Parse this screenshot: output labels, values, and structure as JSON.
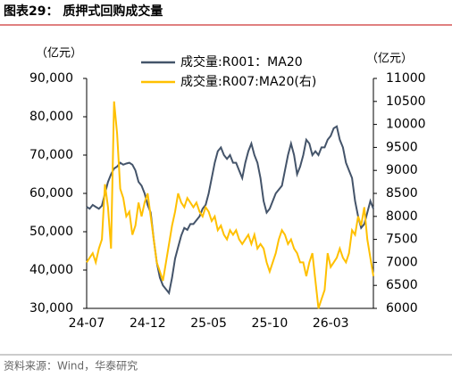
{
  "header": {
    "title": "图表29：  质押式回购成交量"
  },
  "chart_data": {
    "type": "line",
    "y_unit": "（亿元）",
    "y2_unit": "（亿元）",
    "categories": [
      "24-07",
      null,
      null,
      null,
      null,
      null,
      null,
      null,
      null,
      null,
      null,
      null,
      null,
      null,
      null,
      null,
      null,
      null,
      null,
      null,
      "24-12",
      null,
      null,
      null,
      null,
      null,
      null,
      null,
      null,
      null,
      null,
      null,
      null,
      null,
      null,
      null,
      null,
      null,
      null,
      null,
      "25-05",
      null,
      null,
      null,
      null,
      null,
      null,
      null,
      null,
      null,
      null,
      null,
      null,
      null,
      null,
      null,
      null,
      null,
      null,
      null,
      "25-10",
      null,
      null,
      null,
      null,
      null,
      null,
      null,
      null,
      null,
      null,
      null,
      null,
      null,
      null,
      null,
      null,
      null,
      null,
      null,
      "26-03",
      null,
      null,
      null,
      null,
      null,
      null,
      null,
      null,
      null,
      null,
      null,
      null,
      null,
      null
    ],
    "series": [
      {
        "name": "成交量:R001：MA20",
        "color": "#44546a",
        "values": [
          56500,
          56000,
          57000,
          56500,
          56000,
          56800,
          60000,
          63000,
          65000,
          66500,
          67000,
          68000,
          67500,
          67800,
          68000,
          67500,
          66000,
          63000,
          62000,
          60000,
          57000,
          55000,
          48000,
          42000,
          38000,
          36000,
          35000,
          34000,
          38000,
          43000,
          46000,
          49000,
          51000,
          50500,
          52000,
          52000,
          53000,
          54000,
          56000,
          57000,
          60000,
          64000,
          68000,
          71000,
          72000,
          70000,
          69000,
          70000,
          68000,
          68000,
          66000,
          64000,
          68000,
          71000,
          73000,
          70000,
          68000,
          64000,
          58000,
          55000,
          56000,
          58000,
          60000,
          61000,
          62000,
          66000,
          70000,
          73000,
          70000,
          65000,
          67000,
          70000,
          74000,
          73000,
          70000,
          71000,
          70000,
          72000,
          72000,
          74000,
          75000,
          77000,
          77500,
          74000,
          72000,
          68000,
          66000,
          64000,
          58000,
          54000,
          51000,
          52000,
          55000,
          58000,
          56000
        ]
      },
      {
        "name": "成交量:R007:MA20(右)",
        "color": "#ffc000",
        "axis": "y2",
        "values": [
          7000,
          7100,
          7200,
          7000,
          7300,
          7500,
          8700,
          8200,
          7300,
          10500,
          9800,
          8600,
          8400,
          8000,
          8100,
          7600,
          7800,
          8300,
          8000,
          8300,
          8500,
          8000,
          7500,
          7000,
          6800,
          6600,
          7000,
          7400,
          7800,
          8100,
          8500,
          8300,
          8200,
          8400,
          8300,
          8200,
          8300,
          8100,
          8000,
          8200,
          8100,
          7900,
          8000,
          7700,
          7800,
          7600,
          7500,
          7700,
          7600,
          7700,
          7500,
          7400,
          7500,
          7600,
          7400,
          7600,
          7300,
          7400,
          7300,
          7000,
          6800,
          7000,
          7200,
          7500,
          7700,
          7600,
          7400,
          7500,
          7300,
          7200,
          7000,
          7000,
          6700,
          7000,
          7200,
          6600,
          6000,
          6200,
          6400,
          7200,
          6900,
          7000,
          7100,
          7300,
          7100,
          7000,
          7200,
          7700,
          7600,
          8000,
          7800,
          8200,
          7500,
          7100,
          6700
        ]
      }
    ],
    "ylim": [
      30000,
      90000
    ],
    "yticks": [
      {
        "value": 30000,
        "label": "30,000"
      },
      {
        "value": 40000,
        "label": "40,000"
      },
      {
        "value": 50000,
        "label": "50,000"
      },
      {
        "value": 60000,
        "label": "60,000"
      },
      {
        "value": 70000,
        "label": "70,000"
      },
      {
        "value": 80000,
        "label": "80,000"
      },
      {
        "value": 90000,
        "label": "90,000"
      }
    ],
    "y2lim": [
      6000,
      11000
    ],
    "y2ticks": [
      6000,
      6500,
      7000,
      7500,
      8000,
      8500,
      9000,
      9500,
      10000,
      10500,
      11000
    ],
    "legend": "top"
  },
  "footer": {
    "source": "资料来源：Wind，华泰研究"
  }
}
